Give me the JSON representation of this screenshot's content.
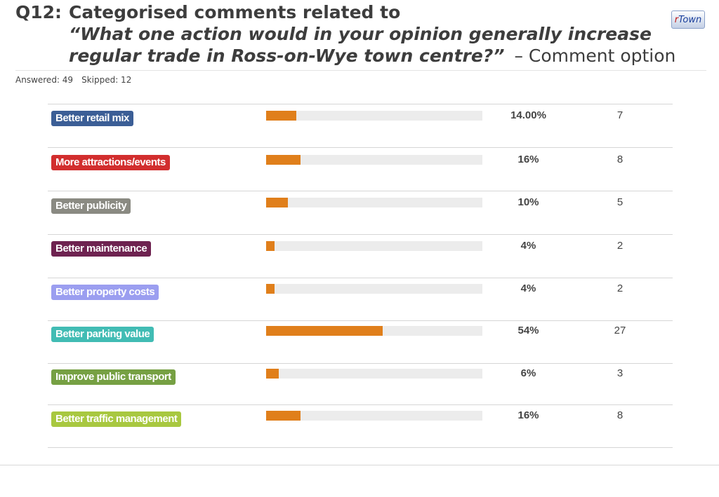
{
  "header": {
    "question_number": "Q12:",
    "title_line1": "Categorised comments related to",
    "title_line2": "“What one action would in your opinion generally increase",
    "title_line3": "regular trade in Ross-on-Wye town centre?”",
    "title_suffix": "– Comment option"
  },
  "logo": {
    "prefix": "r",
    "text": "Town"
  },
  "summary": {
    "answered": "Answered: 49",
    "skipped": "Skipped: 12"
  },
  "rows": [
    {
      "label": "Better retail mix",
      "color": "#3b5e96",
      "percent": "14.00%",
      "value": 14,
      "count": "7"
    },
    {
      "label": "More attractions/events",
      "color": "#d22e2e",
      "percent": "16%",
      "value": 16,
      "count": "8"
    },
    {
      "label": "Better publicity",
      "color": "#8a8a82",
      "percent": "10%",
      "value": 10,
      "count": "5"
    },
    {
      "label": "Better maintenance",
      "color": "#6e2250",
      "percent": "4%",
      "value": 4,
      "count": "2"
    },
    {
      "label": "Better property costs",
      "color": "#9b9ef0",
      "percent": "4%",
      "value": 4,
      "count": "2"
    },
    {
      "label": "Better parking value",
      "color": "#41bcb4",
      "percent": "54%",
      "value": 54,
      "count": "27"
    },
    {
      "label": "Improve public transport",
      "color": "#76a043",
      "percent": "6%",
      "value": 6,
      "count": "3"
    },
    {
      "label": "Better traffic management",
      "color": "#a8c840",
      "percent": "16%",
      "value": 16,
      "count": "8"
    }
  ]
}
